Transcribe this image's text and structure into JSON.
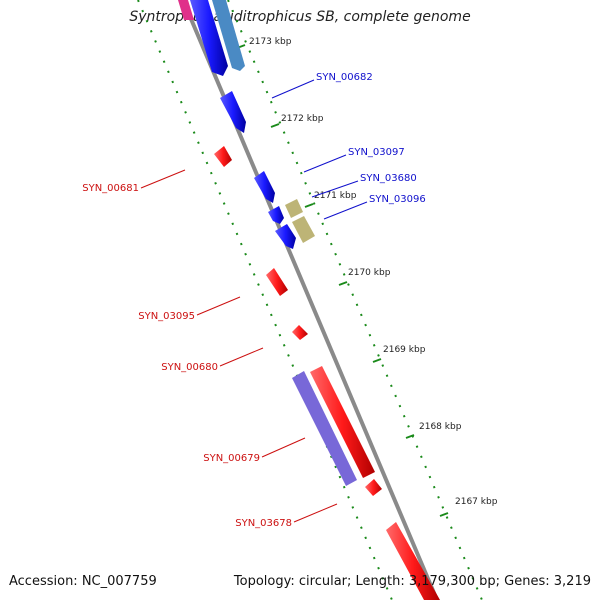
{
  "title": "Syntrophus aciditrophicus SB, complete genome",
  "footer": {
    "accession": "Accession: NC_007759",
    "summary": "Topology: circular; Length: 3,179,300 bp; Genes: 3,219"
  },
  "colors": {
    "forward_gene": "#1a1aff",
    "forward_gene_alt": "#4a8ac4",
    "reverse_gene": "#ff1a1a",
    "olive_gene": "#bdb476",
    "purple_gene": "#7868d8",
    "pink_gene": "#e0308a",
    "backbone": "#8a8a8a",
    "tick_marks": "#1a8a1a",
    "forward_label": "#1010cc",
    "reverse_label": "#cc1010"
  },
  "ticks": [
    "2173 kbp",
    "2172 kbp",
    "2171 kbp",
    "2170 kbp",
    "2169 kbp",
    "2168 kbp",
    "2167 kbp"
  ],
  "labels_forward": [
    "SYN_00682",
    "SYN_03097",
    "SYN_03680",
    "SYN_03096"
  ],
  "labels_reverse": [
    "SYN_00681",
    "SYN_03095",
    "SYN_00680",
    "SYN_00679",
    "SYN_03678"
  ]
}
